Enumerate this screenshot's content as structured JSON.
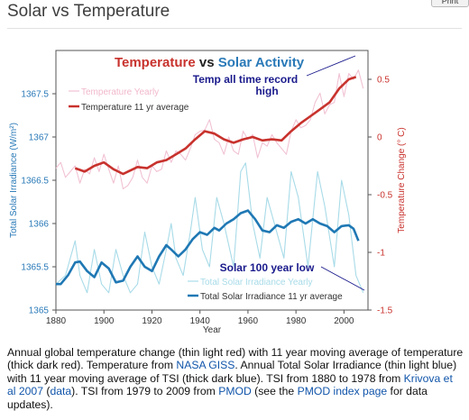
{
  "page": {
    "title": "Solar vs Temperature",
    "top_button": "Print"
  },
  "chart_data": {
    "type": "line",
    "title_part1": "Temperature",
    "title_vs": " vs ",
    "title_part2": "Solar Activity",
    "xlabel": "Year",
    "ylabel_left": "Total Solar Irradiance (W/m²)",
    "ylabel_right": "Temperature Change (° C)",
    "xlim": [
      1880,
      2010
    ],
    "ylim_left": [
      1365,
      1368
    ],
    "ylim_right": [
      -1.5,
      0.75
    ],
    "x_ticks": [
      1880,
      1900,
      1920,
      1940,
      1960,
      1980,
      2000
    ],
    "y_ticks_left": [
      "1365",
      "1365.5",
      "1366",
      "1366.5",
      "1367",
      "1367.5"
    ],
    "y_ticks_left_values": [
      1365,
      1365.5,
      1366,
      1366.5,
      1367,
      1367.5
    ],
    "y_ticks_right": [
      "-1.5",
      "-1",
      "-0.5",
      "0",
      "0.5"
    ],
    "y_ticks_right_values": [
      -1.5,
      -1,
      -0.5,
      0,
      0.5
    ],
    "legend_top": [
      "Temperature Yearly",
      "Temperature 11 yr average"
    ],
    "legend_bottom": [
      "Total Solar Irradiance Yearly",
      "Total Solar Irradiance 11 yr average"
    ],
    "annotation_top": [
      "Temp all time record",
      "high"
    ],
    "annotation_bottom": "Solar 100 year low",
    "colors": {
      "temp_yearly": "#f1c2d4",
      "temp_avg": "#c8322d",
      "tsi_yearly": "#a8dbe8",
      "tsi_avg": "#1f78b4",
      "left_axis": "#2a7ab8",
      "right_axis": "#c8322d",
      "annotation": "#1a1a8c"
    },
    "series": [
      {
        "name": "Temperature Yearly",
        "axis": "right",
        "points": [
          [
            1880,
            -0.27
          ],
          [
            1882,
            -0.22
          ],
          [
            1884,
            -0.35
          ],
          [
            1886,
            -0.3
          ],
          [
            1888,
            -0.25
          ],
          [
            1890,
            -0.4
          ],
          [
            1892,
            -0.28
          ],
          [
            1894,
            -0.32
          ],
          [
            1896,
            -0.18
          ],
          [
            1898,
            -0.3
          ],
          [
            1900,
            -0.15
          ],
          [
            1902,
            -0.28
          ],
          [
            1904,
            -0.4
          ],
          [
            1906,
            -0.25
          ],
          [
            1908,
            -0.45
          ],
          [
            1910,
            -0.42
          ],
          [
            1912,
            -0.35
          ],
          [
            1914,
            -0.2
          ],
          [
            1916,
            -0.35
          ],
          [
            1918,
            -0.4
          ],
          [
            1920,
            -0.25
          ],
          [
            1922,
            -0.3
          ],
          [
            1924,
            -0.28
          ],
          [
            1926,
            -0.12
          ],
          [
            1928,
            -0.22
          ],
          [
            1930,
            -0.12
          ],
          [
            1932,
            -0.15
          ],
          [
            1934,
            -0.2
          ],
          [
            1936,
            -0.1
          ],
          [
            1938,
            0.02
          ],
          [
            1940,
            0.05
          ],
          [
            1942,
            0.06
          ],
          [
            1944,
            0.15
          ],
          [
            1946,
            -0.02
          ],
          [
            1948,
            -0.05
          ],
          [
            1950,
            -0.15
          ],
          [
            1952,
            0.0
          ],
          [
            1954,
            -0.12
          ],
          [
            1956,
            -0.15
          ],
          [
            1958,
            0.05
          ],
          [
            1960,
            -0.02
          ],
          [
            1962,
            0.02
          ],
          [
            1964,
            -0.18
          ],
          [
            1966,
            -0.05
          ],
          [
            1968,
            -0.08
          ],
          [
            1970,
            0.02
          ],
          [
            1972,
            -0.05
          ],
          [
            1974,
            -0.1
          ],
          [
            1976,
            -0.15
          ],
          [
            1978,
            0.05
          ],
          [
            1980,
            0.15
          ],
          [
            1982,
            0.08
          ],
          [
            1984,
            0.1
          ],
          [
            1986,
            0.15
          ],
          [
            1988,
            0.3
          ],
          [
            1990,
            0.38
          ],
          [
            1992,
            0.2
          ],
          [
            1994,
            0.28
          ],
          [
            1996,
            0.3
          ],
          [
            1998,
            0.55
          ],
          [
            2000,
            0.35
          ],
          [
            2002,
            0.55
          ],
          [
            2004,
            0.5
          ],
          [
            2006,
            0.58
          ],
          [
            2008,
            0.42
          ]
        ]
      },
      {
        "name": "Temperature 11 yr average",
        "axis": "right",
        "points": [
          [
            1888,
            -0.27
          ],
          [
            1892,
            -0.3
          ],
          [
            1896,
            -0.25
          ],
          [
            1900,
            -0.22
          ],
          [
            1904,
            -0.28
          ],
          [
            1908,
            -0.32
          ],
          [
            1910,
            -0.3
          ],
          [
            1914,
            -0.26
          ],
          [
            1918,
            -0.27
          ],
          [
            1922,
            -0.22
          ],
          [
            1926,
            -0.2
          ],
          [
            1930,
            -0.15
          ],
          [
            1934,
            -0.1
          ],
          [
            1938,
            -0.02
          ],
          [
            1942,
            0.05
          ],
          [
            1946,
            0.03
          ],
          [
            1950,
            -0.02
          ],
          [
            1954,
            -0.05
          ],
          [
            1958,
            -0.02
          ],
          [
            1962,
            0.0
          ],
          [
            1966,
            -0.03
          ],
          [
            1970,
            -0.02
          ],
          [
            1974,
            -0.03
          ],
          [
            1978,
            0.05
          ],
          [
            1982,
            0.12
          ],
          [
            1986,
            0.18
          ],
          [
            1990,
            0.24
          ],
          [
            1994,
            0.3
          ],
          [
            1998,
            0.42
          ],
          [
            2002,
            0.5
          ],
          [
            2005,
            0.52
          ]
        ]
      },
      {
        "name": "Total Solar Irradiance Yearly",
        "axis": "left",
        "points": [
          [
            1880,
            1365.3
          ],
          [
            1884,
            1365.4
          ],
          [
            1888,
            1365.8
          ],
          [
            1890,
            1365.4
          ],
          [
            1893,
            1365.2
          ],
          [
            1896,
            1365.7
          ],
          [
            1899,
            1365.3
          ],
          [
            1902,
            1365.2
          ],
          [
            1905,
            1365.7
          ],
          [
            1908,
            1365.4
          ],
          [
            1911,
            1365.2
          ],
          [
            1914,
            1365.3
          ],
          [
            1917,
            1365.9
          ],
          [
            1920,
            1365.5
          ],
          [
            1923,
            1365.3
          ],
          [
            1926,
            1365.7
          ],
          [
            1928,
            1366.0
          ],
          [
            1930,
            1365.6
          ],
          [
            1933,
            1365.4
          ],
          [
            1936,
            1365.9
          ],
          [
            1938,
            1366.3
          ],
          [
            1941,
            1365.7
          ],
          [
            1944,
            1365.5
          ],
          [
            1947,
            1366.3
          ],
          [
            1950,
            1366.0
          ],
          [
            1954,
            1365.5
          ],
          [
            1957,
            1366.6
          ],
          [
            1959,
            1366.7
          ],
          [
            1962,
            1366.0
          ],
          [
            1965,
            1365.6
          ],
          [
            1968,
            1366.3
          ],
          [
            1971,
            1366.0
          ],
          [
            1975,
            1365.6
          ],
          [
            1978,
            1366.6
          ],
          [
            1981,
            1366.3
          ],
          [
            1985,
            1365.5
          ],
          [
            1989,
            1366.6
          ],
          [
            1992,
            1366.2
          ],
          [
            1996,
            1365.5
          ],
          [
            1999,
            1366.5
          ],
          [
            2002,
            1366.1
          ],
          [
            2005,
            1365.4
          ],
          [
            2008,
            1365.2
          ]
        ]
      },
      {
        "name": "Total Solar Irradiance 11 yr average",
        "axis": "left",
        "points": [
          [
            1880,
            1365.3
          ],
          [
            1882,
            1365.3
          ],
          [
            1885,
            1365.4
          ],
          [
            1888,
            1365.55
          ],
          [
            1890,
            1365.56
          ],
          [
            1893,
            1365.45
          ],
          [
            1896,
            1365.38
          ],
          [
            1899,
            1365.55
          ],
          [
            1902,
            1365.48
          ],
          [
            1905,
            1365.32
          ],
          [
            1908,
            1365.34
          ],
          [
            1911,
            1365.5
          ],
          [
            1914,
            1365.62
          ],
          [
            1917,
            1365.5
          ],
          [
            1920,
            1365.45
          ],
          [
            1923,
            1365.62
          ],
          [
            1926,
            1365.75
          ],
          [
            1928,
            1365.7
          ],
          [
            1931,
            1365.62
          ],
          [
            1934,
            1365.7
          ],
          [
            1937,
            1365.82
          ],
          [
            1940,
            1365.9
          ],
          [
            1943,
            1365.87
          ],
          [
            1946,
            1365.95
          ],
          [
            1948,
            1365.92
          ],
          [
            1951,
            1366.0
          ],
          [
            1954,
            1366.05
          ],
          [
            1957,
            1366.12
          ],
          [
            1960,
            1366.15
          ],
          [
            1963,
            1366.05
          ],
          [
            1966,
            1365.92
          ],
          [
            1969,
            1365.9
          ],
          [
            1972,
            1365.98
          ],
          [
            1975,
            1365.95
          ],
          [
            1978,
            1366.02
          ],
          [
            1981,
            1366.05
          ],
          [
            1984,
            1366.0
          ],
          [
            1987,
            1366.05
          ],
          [
            1990,
            1366.0
          ],
          [
            1993,
            1365.97
          ],
          [
            1996,
            1365.9
          ],
          [
            1999,
            1365.97
          ],
          [
            2002,
            1365.98
          ],
          [
            2004,
            1365.94
          ],
          [
            2006,
            1365.8
          ]
        ]
      }
    ]
  },
  "caption": {
    "t1": "Annual global temperature change (thin light red) with 11 year moving average of temperature (thick dark red). Temperature from ",
    "l1": "NASA GISS",
    "t2": ". Annual Total Solar Irradiance (thin light blue) with 11 year moving average of TSI (thick dark blue). TSI from 1880 to 1978 from ",
    "l2": "Krivova et al 2007",
    "t3": " (",
    "l3": "data",
    "t4": "). TSI from 1979 to 2009 from ",
    "l4": "PMOD",
    "t5": " (see the ",
    "l5": "PMOD index page",
    "t6": " for data updates)."
  }
}
